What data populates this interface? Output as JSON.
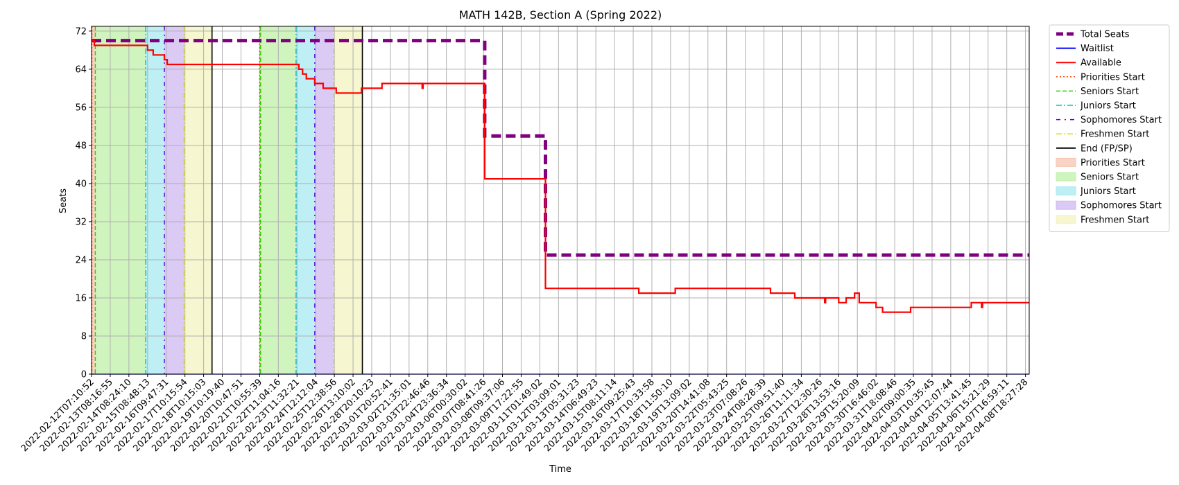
{
  "chart_data": {
    "type": "line",
    "title": "MATH 142B, Section A (Spring 2022)",
    "xlabel": "Time",
    "ylabel": "Seats",
    "ylim": [
      0,
      73
    ],
    "yticks": [
      0,
      8,
      16,
      24,
      32,
      40,
      48,
      56,
      64,
      72
    ],
    "grid": true,
    "legend_position": "outside-right",
    "x_tick_labels": [
      "2022-02-12T07:10:52",
      "2022-02-13T08:16:55",
      "2022-02-14T08:24:10",
      "2022-02-15T08:48:13",
      "2022-02-16T09:47:31",
      "2022-02-17T10:15:54",
      "2022-02-18T10:15:03",
      "2022-02-19T10:19:40",
      "2022-02-20T10:47:51",
      "2022-02-21T10:55:39",
      "2022-02-22T11:04:16",
      "2022-02-23T11:32:21",
      "2022-02-24T12:12:04",
      "2022-02-25T12:38:56",
      "2022-02-26T13:10:02",
      "2022-02-28T20:10:23",
      "2022-03-01T20:52:41",
      "2022-03-02T21:35:01",
      "2022-03-03T22:46:46",
      "2022-03-04T23:36:34",
      "2022-03-06T00:30:02",
      "2022-03-07T08:41:26",
      "2022-03-08T09:37:06",
      "2022-03-09T17:22:55",
      "2022-03-11T01:49:02",
      "2022-03-12T03:09:01",
      "2022-03-13T05:31:23",
      "2022-03-14T06:49:23",
      "2022-03-15T08:11:14",
      "2022-03-16T09:25:43",
      "2022-03-17T10:33:58",
      "2022-03-18T11:50:10",
      "2022-03-19T13:09:02",
      "2022-03-20T14:41:08",
      "2022-03-22T05:43:25",
      "2022-03-23T07:08:26",
      "2022-03-24T08:28:39",
      "2022-03-25T09:51:40",
      "2022-03-26T11:11:34",
      "2022-03-27T12:30:26",
      "2022-03-28T13:53:16",
      "2022-03-29T15:20:09",
      "2022-03-30T16:46:02",
      "2022-03-31T18:08:46",
      "2022-04-02T09:00:35",
      "2022-04-03T10:35:45",
      "2022-04-04T12:07:44",
      "2022-04-05T13:41:45",
      "2022-04-06T15:21:29",
      "2022-04-07T16:59:11",
      "2022-04-08T18:27:28"
    ],
    "x_domain": [
      0,
      50.2
    ],
    "series": [
      {
        "name": "Total Seats",
        "color": "#800080",
        "style": "dashed-thick",
        "points": [
          [
            0,
            70
          ],
          [
            21.05,
            70
          ],
          [
            21.05,
            50
          ],
          [
            24.3,
            50
          ],
          [
            24.3,
            25
          ],
          [
            50.2,
            25
          ]
        ]
      },
      {
        "name": "Waitlist",
        "color": "#0000ff",
        "style": "solid",
        "points": [
          [
            0,
            0
          ],
          [
            50.2,
            0
          ]
        ]
      },
      {
        "name": "Available",
        "color": "#ff0000",
        "style": "solid",
        "points": [
          [
            0,
            70
          ],
          [
            0.15,
            70
          ],
          [
            0.15,
            69
          ],
          [
            3.0,
            69
          ],
          [
            3.0,
            68
          ],
          [
            3.3,
            68
          ],
          [
            3.3,
            67
          ],
          [
            3.9,
            67
          ],
          [
            3.9,
            66
          ],
          [
            4.05,
            66
          ],
          [
            4.05,
            65
          ],
          [
            9.0,
            65
          ],
          [
            9.0,
            65
          ],
          [
            11.1,
            65
          ],
          [
            11.1,
            64
          ],
          [
            11.3,
            64
          ],
          [
            11.3,
            63
          ],
          [
            11.5,
            63
          ],
          [
            11.5,
            62
          ],
          [
            11.95,
            62
          ],
          [
            11.95,
            61
          ],
          [
            12.4,
            61
          ],
          [
            12.4,
            60
          ],
          [
            13.1,
            60
          ],
          [
            13.1,
            59
          ],
          [
            14.45,
            59
          ],
          [
            14.45,
            60
          ],
          [
            15.55,
            60
          ],
          [
            15.55,
            61
          ],
          [
            17.7,
            61
          ],
          [
            17.7,
            60
          ],
          [
            17.75,
            60
          ],
          [
            17.75,
            61
          ],
          [
            21.05,
            61
          ],
          [
            21.05,
            41
          ],
          [
            24.3,
            41
          ],
          [
            24.3,
            18
          ],
          [
            29.3,
            18
          ],
          [
            29.3,
            17
          ],
          [
            31.25,
            17
          ],
          [
            31.25,
            18
          ],
          [
            36.35,
            18
          ],
          [
            36.35,
            17
          ],
          [
            37.65,
            17
          ],
          [
            37.65,
            16
          ],
          [
            39.25,
            16
          ],
          [
            39.25,
            15
          ],
          [
            39.3,
            15
          ],
          [
            39.3,
            16
          ],
          [
            40.0,
            16
          ],
          [
            40.0,
            15
          ],
          [
            40.4,
            15
          ],
          [
            40.4,
            16
          ],
          [
            40.85,
            16
          ],
          [
            40.85,
            17
          ],
          [
            41.1,
            17
          ],
          [
            41.1,
            15
          ],
          [
            42.0,
            15
          ],
          [
            42.0,
            14
          ],
          [
            42.35,
            14
          ],
          [
            42.35,
            13
          ],
          [
            43.85,
            13
          ],
          [
            43.85,
            14
          ],
          [
            47.1,
            14
          ],
          [
            47.1,
            15
          ],
          [
            47.65,
            15
          ],
          [
            47.65,
            14
          ],
          [
            47.7,
            14
          ],
          [
            47.7,
            15
          ],
          [
            50.2,
            15
          ]
        ]
      }
    ],
    "vertical_lines": [
      {
        "name": "Priorities Start",
        "color": "#ff4500",
        "style": "dotted",
        "x": [
          0.02,
          9.0
        ]
      },
      {
        "name": "Seniors Start",
        "color": "#33cc00",
        "style": "dashed",
        "x": [
          0.2,
          9.05
        ]
      },
      {
        "name": "Juniors Start",
        "color": "#00c0c0",
        "style": "dashdot",
        "x": [
          2.9,
          10.95
        ]
      },
      {
        "name": "Sophomores Start",
        "color": "#5500dd",
        "style": "dashdot-loose",
        "x": [
          3.9,
          11.95
        ]
      },
      {
        "name": "Freshmen Start",
        "color": "#dddd00",
        "style": "dashdot",
        "x": [
          4.95,
          12.95
        ]
      },
      {
        "name": "End (FP/SP)",
        "color": "#000000",
        "style": "solid",
        "x": [
          6.45,
          14.5
        ]
      }
    ],
    "shaded_spans": [
      {
        "name": "Priorities Start",
        "color": "#f5c6b0",
        "spans": [
          [
            0.02,
            0.2
          ],
          [
            9.0,
            9.05
          ]
        ]
      },
      {
        "name": "Seniors Start",
        "color": "#bff0a8",
        "spans": [
          [
            0.2,
            2.9
          ],
          [
            9.05,
            10.95
          ]
        ]
      },
      {
        "name": "Juniors Start",
        "color": "#a8eaf0",
        "spans": [
          [
            2.9,
            3.9
          ],
          [
            10.95,
            11.95
          ]
        ]
      },
      {
        "name": "Sophomores Start",
        "color": "#cdb8f0",
        "spans": [
          [
            3.9,
            4.95
          ],
          [
            11.95,
            12.95
          ]
        ]
      },
      {
        "name": "Freshmen Start",
        "color": "#f3f3c0",
        "spans": [
          [
            4.95,
            6.45
          ],
          [
            12.95,
            14.5
          ]
        ]
      }
    ],
    "legend": [
      {
        "label": "Total Seats",
        "kind": "line",
        "color": "#800080",
        "style": "dashed-thick"
      },
      {
        "label": "Waitlist",
        "kind": "line",
        "color": "#0000ff",
        "style": "solid"
      },
      {
        "label": "Available",
        "kind": "line",
        "color": "#ff0000",
        "style": "solid"
      },
      {
        "label": "Priorities Start",
        "kind": "line",
        "color": "#ff4500",
        "style": "dotted"
      },
      {
        "label": "Seniors Start",
        "kind": "line",
        "color": "#33cc00",
        "style": "dashed"
      },
      {
        "label": "Juniors Start",
        "kind": "line",
        "color": "#00c0c0",
        "style": "dashdot"
      },
      {
        "label": "Sophomores Start",
        "kind": "line",
        "color": "#5500dd",
        "style": "dashdot-loose"
      },
      {
        "label": "Freshmen Start",
        "kind": "line",
        "color": "#dddd00",
        "style": "dashdot"
      },
      {
        "label": "End (FP/SP)",
        "kind": "line",
        "color": "#000000",
        "style": "solid"
      },
      {
        "label": "Priorities Start",
        "kind": "patch",
        "color": "#f5c6b0"
      },
      {
        "label": "Seniors Start",
        "kind": "patch",
        "color": "#bff0a8"
      },
      {
        "label": "Juniors Start",
        "kind": "patch",
        "color": "#a8eaf0"
      },
      {
        "label": "Sophomores Start",
        "kind": "patch",
        "color": "#cdb8f0"
      },
      {
        "label": "Freshmen Start",
        "kind": "patch",
        "color": "#f3f3c0"
      }
    ]
  }
}
